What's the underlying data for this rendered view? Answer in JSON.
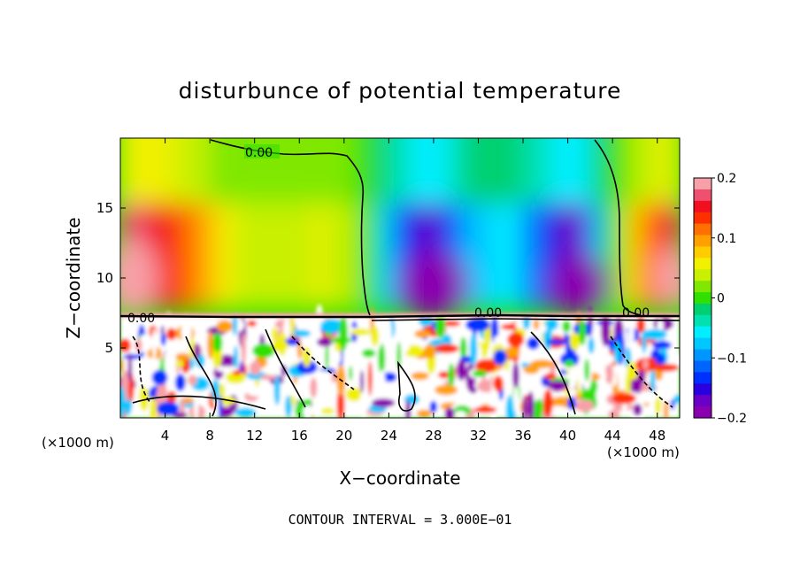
{
  "chart_data": {
    "type": "heatmap",
    "title": "disturbunce of potential temperature",
    "xlabel": "X−coordinate",
    "ylabel": "Z−coordinate",
    "x_unit": "(×1000 m)",
    "y_unit": "(×1000 m)",
    "xlim": [
      0,
      50
    ],
    "ylim": [
      0,
      20
    ],
    "xticks": [
      4,
      8,
      12,
      16,
      20,
      24,
      28,
      32,
      36,
      40,
      44,
      48
    ],
    "yticks": [
      5,
      10,
      15
    ],
    "colorbar": {
      "range": [
        -0.2,
        0.2
      ],
      "ticks": [
        "0.2",
        "0.1",
        "0",
        "−0.1",
        "−0.2"
      ],
      "tick_values": [
        0.2,
        0.1,
        0,
        -0.1,
        -0.2
      ],
      "colors": [
        "#8a00b0",
        "#6a00c8",
        "#2a00e0",
        "#0030ff",
        "#0064ff",
        "#0096ff",
        "#00c8ff",
        "#00eeff",
        "#00e0b0",
        "#00d070",
        "#30e000",
        "#80e800",
        "#c8f000",
        "#f0f000",
        "#ffcc00",
        "#ffa000",
        "#ff7000",
        "#ff3000",
        "#f01020",
        "#f05070",
        "#f8a0a8"
      ]
    },
    "contour_interval_text": "CONTOUR INTERVAL = 3.000E−01",
    "contour_labels": [
      "0.00",
      "0.00",
      "0.00",
      "0.00"
    ],
    "upper_layer_values": [
      {
        "x": 0,
        "v": 0.18
      },
      {
        "x": 3,
        "v": 0.16
      },
      {
        "x": 6,
        "v": 0.12
      },
      {
        "x": 10,
        "v": 0.05
      },
      {
        "x": 14,
        "v": 0.03
      },
      {
        "x": 18,
        "v": 0.05
      },
      {
        "x": 22,
        "v": 0.02
      },
      {
        "x": 25,
        "v": -0.12
      },
      {
        "x": 28,
        "v": -0.18
      },
      {
        "x": 31,
        "v": -0.08
      },
      {
        "x": 35,
        "v": -0.06
      },
      {
        "x": 39,
        "v": -0.15
      },
      {
        "x": 41,
        "v": -0.19
      },
      {
        "x": 43,
        "v": -0.05
      },
      {
        "x": 46,
        "v": 0.08
      },
      {
        "x": 50,
        "v": 0.17
      }
    ]
  }
}
